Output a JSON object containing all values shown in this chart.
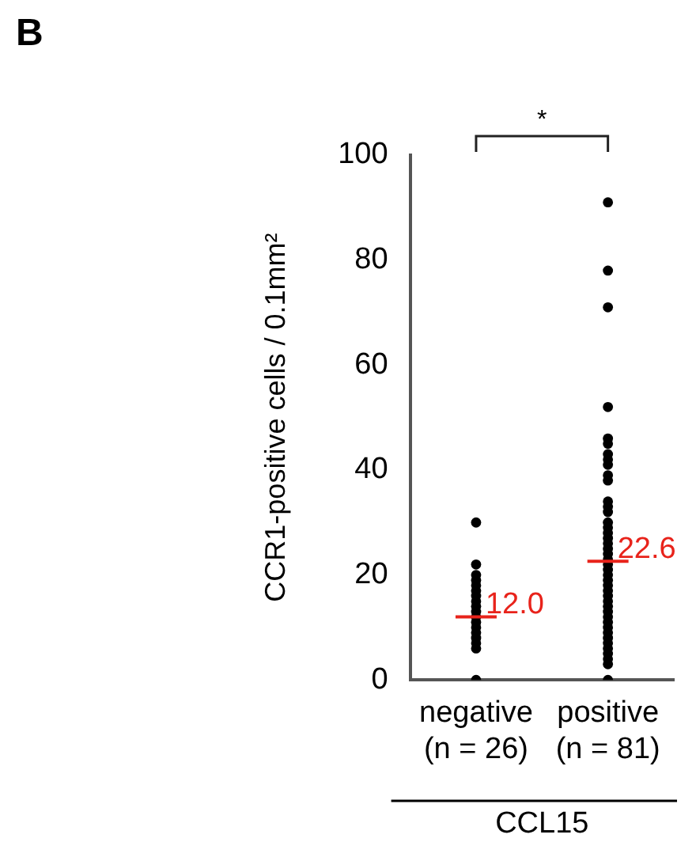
{
  "chart_data": {
    "type": "scatter",
    "title": "B",
    "ylabel": "CCR1-positive cells / 0.1mm²",
    "xlabel": "CCL15",
    "categories": [
      "negative\n(n = 26)",
      "positive\n(n = 81)"
    ],
    "ylim": [
      0,
      100
    ],
    "yticks": [
      0,
      20,
      40,
      60,
      80,
      100
    ],
    "grid": false,
    "legend": false,
    "annotations": [
      "*",
      {
        "text": "12.0",
        "x": "negative\n(n = 26)",
        "y": 12.0
      },
      {
        "text": "22.6",
        "x": "positive\n(n = 81)",
        "y": 22.6
      }
    ],
    "series": [
      {
        "color": "#000000",
        "marker": "circle",
        "x": [
          "negative\n(n = 26)",
          "negative\n(n = 26)",
          "negative\n(n = 26)",
          "negative\n(n = 26)",
          "negative\n(n = 26)",
          "negative\n(n = 26)",
          "negative\n(n = 26)",
          "negative\n(n = 26)",
          "negative\n(n = 26)",
          "negative\n(n = 26)",
          "negative\n(n = 26)",
          "negative\n(n = 26)",
          "negative\n(n = 26)",
          "negative\n(n = 26)",
          "negative\n(n = 26)",
          "negative\n(n = 26)",
          "negative\n(n = 26)",
          "negative\n(n = 26)"
        ],
        "values": [
          30,
          22,
          20,
          19,
          18,
          17,
          16,
          15,
          14,
          13,
          12,
          11,
          10,
          9,
          8,
          7,
          6,
          0
        ]
      },
      {
        "color": "#000000",
        "marker": "circle",
        "x": [
          "positive\n(n = 81)",
          "positive\n(n = 81)",
          "positive\n(n = 81)",
          "positive\n(n = 81)",
          "positive\n(n = 81)",
          "positive\n(n = 81)",
          "positive\n(n = 81)",
          "positive\n(n = 81)",
          "positive\n(n = 81)",
          "positive\n(n = 81)",
          "positive\n(n = 81)",
          "positive\n(n = 81)",
          "positive\n(n = 81)",
          "positive\n(n = 81)",
          "positive\n(n = 81)",
          "positive\n(n = 81)",
          "positive\n(n = 81)",
          "positive\n(n = 81)",
          "positive\n(n = 81)",
          "positive\n(n = 81)",
          "positive\n(n = 81)",
          "positive\n(n = 81)",
          "positive\n(n = 81)",
          "positive\n(n = 81)",
          "positive\n(n = 81)",
          "positive\n(n = 81)",
          "positive\n(n = 81)",
          "positive\n(n = 81)",
          "positive\n(n = 81)",
          "positive\n(n = 81)",
          "positive\n(n = 81)",
          "positive\n(n = 81)",
          "positive\n(n = 81)",
          "positive\n(n = 81)",
          "positive\n(n = 81)",
          "positive\n(n = 81)",
          "positive\n(n = 81)",
          "positive\n(n = 81)",
          "positive\n(n = 81)",
          "positive\n(n = 81)",
          "positive\n(n = 81)",
          "positive\n(n = 81)",
          "positive\n(n = 81)"
        ],
        "values": [
          91,
          78,
          71,
          52,
          46,
          45,
          43,
          42,
          41,
          39,
          38,
          34,
          33,
          32,
          30,
          29,
          28,
          27,
          26,
          25,
          24,
          23,
          22,
          21,
          20,
          19,
          18,
          17,
          16,
          15,
          14,
          13,
          12,
          11,
          10,
          9,
          8,
          7,
          6,
          5,
          4,
          3,
          0
        ]
      }
    ]
  }
}
